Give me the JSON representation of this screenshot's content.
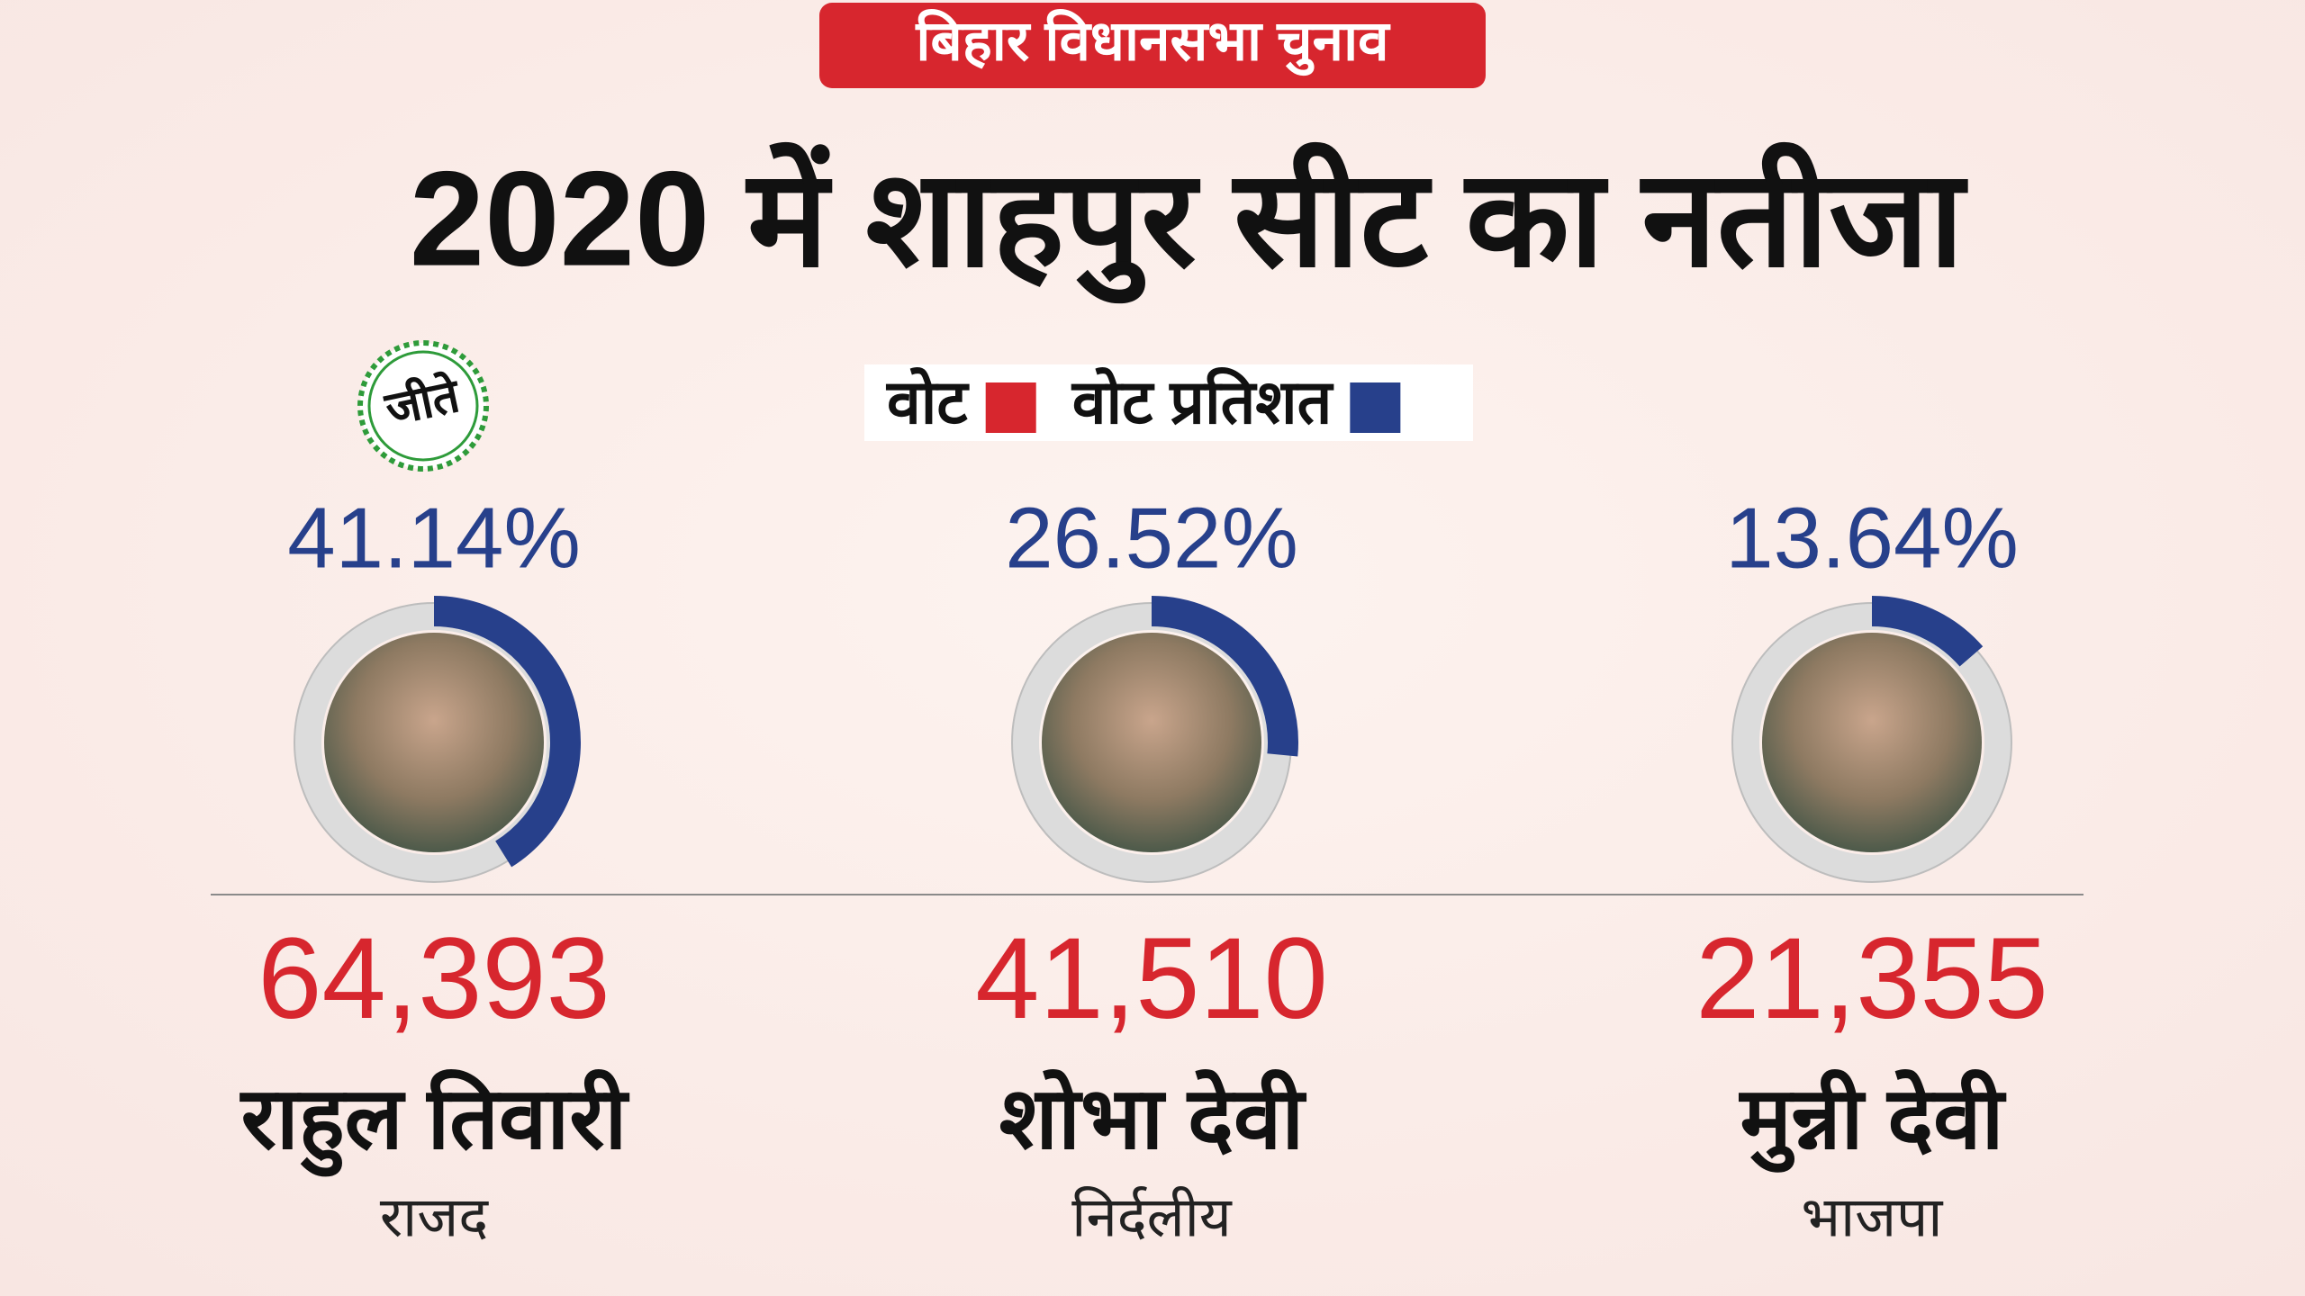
{
  "chart_data": {
    "type": "ring",
    "badge": "बिहार विधानसभा चुनाव",
    "title": "2020 में  शाहपुर सीट का नतीजा",
    "winner_label": "जीते",
    "categories": [
      "राहुल तिवारी",
      "शोभा देवी",
      "मुन्नी देवी"
    ],
    "parties": [
      "राजद",
      "निर्दलीय",
      "भाजपा"
    ],
    "series": [
      {
        "name": "वोट",
        "color": "#d7262e",
        "values": [
          64393,
          41510,
          21355
        ],
        "value_labels": [
          "64,393",
          "41,510",
          "21,355"
        ]
      },
      {
        "name": "वोट प्रतिशत",
        "color": "#27408b",
        "values": [
          41.14,
          26.52,
          13.64
        ],
        "value_labels": [
          "41.14%",
          "26.52%",
          "13.64%"
        ]
      }
    ]
  }
}
